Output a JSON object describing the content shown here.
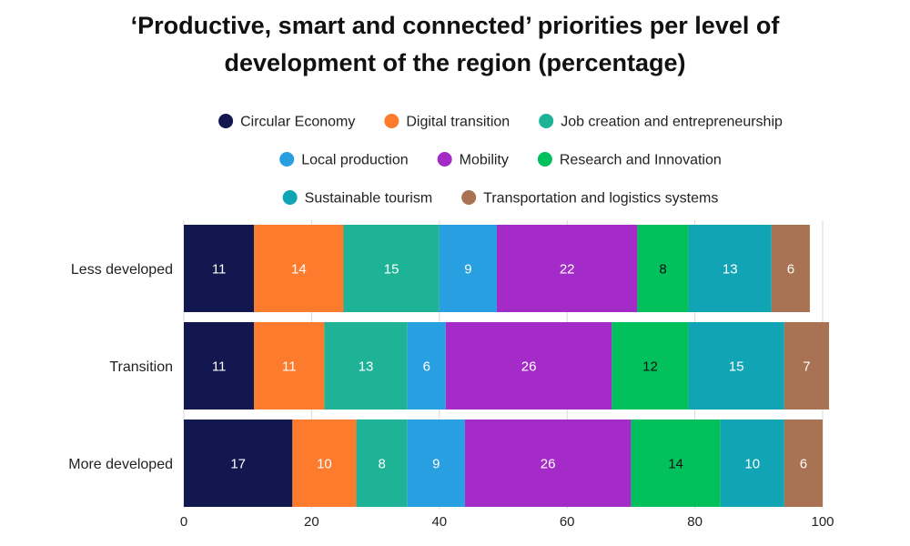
{
  "chart_data": {
    "type": "bar",
    "orientation": "horizontal",
    "stacked": true,
    "title_lines": [
      "‘Productive, smart and connected’ priorities per level of",
      "development of the region (percentage)"
    ],
    "categories": [
      "Less developed",
      "Transition",
      "More developed"
    ],
    "series": [
      {
        "name": "Circular Economy",
        "color": "#12174f",
        "label_color": "#ffffff",
        "values": [
          11,
          11,
          17
        ]
      },
      {
        "name": "Digital transition",
        "color": "#fd7b2d",
        "label_color": "#ffffff",
        "values": [
          14,
          11,
          10
        ]
      },
      {
        "name": "Job creation and entrepreneurship",
        "color": "#1eb396",
        "label_color": "#ffffff",
        "values": [
          15,
          13,
          8
        ]
      },
      {
        "name": "Local production",
        "color": "#279fe1",
        "label_color": "#ffffff",
        "values": [
          9,
          6,
          9
        ]
      },
      {
        "name": "Mobility",
        "color": "#a42bc7",
        "label_color": "#ffffff",
        "values": [
          22,
          26,
          26
        ]
      },
      {
        "name": "Research and Innovation",
        "color": "#02c05c",
        "label_color": "#111111",
        "values": [
          8,
          12,
          14
        ]
      },
      {
        "name": "Sustainable tourism",
        "color": "#11a4b5",
        "label_color": "#ffffff",
        "values": [
          13,
          15,
          10
        ]
      },
      {
        "name": "Transportation and logistics systems",
        "color": "#a87253",
        "label_color": "#ffffff",
        "values": [
          6,
          7,
          6
        ]
      }
    ],
    "xlim": [
      0,
      100
    ],
    "xticks": [
      0,
      20,
      40,
      60,
      80,
      100
    ],
    "grid": true,
    "legend_position": "top-center",
    "xlabel": "",
    "ylabel": ""
  }
}
